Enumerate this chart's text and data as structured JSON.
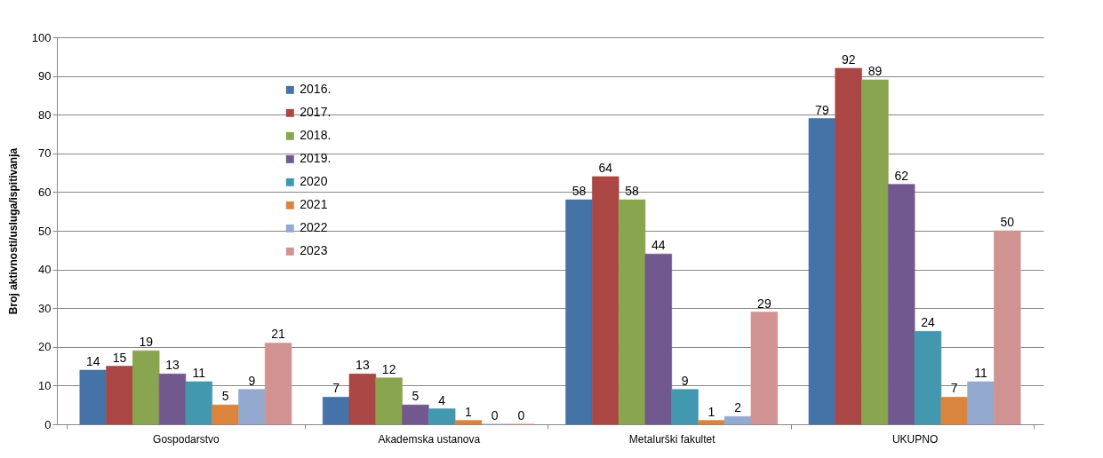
{
  "chart_data": {
    "type": "bar",
    "ylabel": "Broj aktivnosti/usluga/ispitivanja",
    "categories": [
      "Gospodarstvo",
      "Akademska ustanova",
      "Metalurški fakultet",
      "UKUPNO"
    ],
    "series": [
      {
        "name": "2016.",
        "color": "#4572a7",
        "values": [
          14,
          7,
          58,
          79
        ]
      },
      {
        "name": "2017.",
        "color": "#aa4643",
        "values": [
          15,
          13,
          64,
          92
        ]
      },
      {
        "name": "2018.",
        "color": "#89a54e",
        "values": [
          19,
          12,
          58,
          89
        ]
      },
      {
        "name": "2019.",
        "color": "#71588f",
        "values": [
          13,
          5,
          44,
          62
        ]
      },
      {
        "name": "2020",
        "color": "#4198af",
        "values": [
          11,
          4,
          9,
          24
        ]
      },
      {
        "name": "2021",
        "color": "#db843d",
        "values": [
          5,
          1,
          1,
          7
        ]
      },
      {
        "name": "2022",
        "color": "#93a9cf",
        "values": [
          9,
          0,
          2,
          11
        ]
      },
      {
        "name": "2023",
        "color": "#d19392",
        "values": [
          21,
          0,
          29,
          50
        ]
      }
    ],
    "ylim": [
      0,
      100
    ],
    "yticks": [
      0,
      10,
      20,
      30,
      40,
      50,
      60,
      70,
      80,
      90,
      100
    ],
    "grid": "y",
    "legend": "top left",
    "data_labels": true
  }
}
